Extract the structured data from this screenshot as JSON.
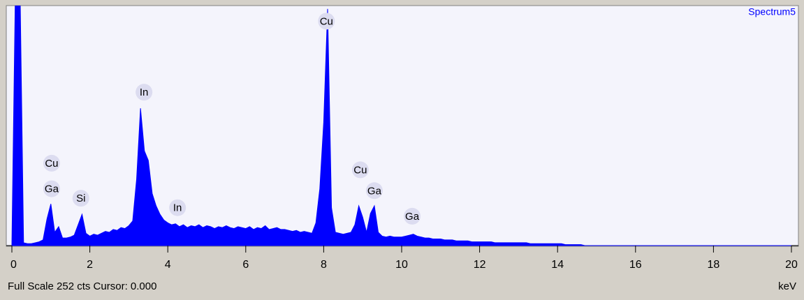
{
  "chart_data": {
    "type": "area",
    "color": "#0000ff",
    "series_name": "Spectrum5",
    "x": [
      0,
      0.1,
      0.2,
      0.3,
      0.4,
      0.5,
      0.6,
      0.7,
      0.8,
      0.9,
      1,
      1.1,
      1.2,
      1.3,
      1.4,
      1.5,
      1.6,
      1.7,
      1.8,
      1.9,
      2,
      2.1,
      2.2,
      2.3,
      2.4,
      2.5,
      2.6,
      2.7,
      2.8,
      2.9,
      3,
      3.1,
      3.2,
      3.3,
      3.4,
      3.5,
      3.6,
      3.7,
      3.8,
      3.9,
      4,
      4.1,
      4.2,
      4.3,
      4.4,
      4.5,
      4.6,
      4.7,
      4.8,
      4.9,
      5,
      5.1,
      5.2,
      5.3,
      5.4,
      5.5,
      5.6,
      5.7,
      5.8,
      5.9,
      6,
      6.1,
      6.2,
      6.3,
      6.4,
      6.5,
      6.6,
      6.7,
      6.8,
      6.9,
      7,
      7.1,
      7.2,
      7.3,
      7.4,
      7.5,
      7.6,
      7.7,
      7.8,
      7.9,
      8,
      8.1,
      8.2,
      8.3,
      8.4,
      8.5,
      8.6,
      8.7,
      8.8,
      8.9,
      9,
      9.1,
      9.2,
      9.3,
      9.4,
      9.5,
      9.6,
      9.7,
      9.8,
      9.9,
      10,
      10.1,
      10.2,
      10.3,
      10.4,
      10.5,
      10.6,
      10.7,
      10.8,
      10.9,
      11,
      11.1,
      11.2,
      11.3,
      11.4,
      11.5,
      11.6,
      11.7,
      11.8,
      11.9,
      12,
      12.1,
      12.2,
      12.3,
      12.4,
      12.5,
      12.6,
      12.7,
      12.8,
      12.9,
      13,
      13.1,
      13.2,
      13.3,
      13.4,
      13.5,
      13.6,
      13.7,
      13.8,
      13.9,
      14,
      14.1,
      14.2,
      14.3,
      14.4,
      14.5,
      14.6,
      14.7,
      14.8,
      14.9,
      15,
      20
    ],
    "values": [
      0,
      300,
      300,
      3,
      2,
      2,
      3,
      4,
      6,
      28,
      44,
      14,
      20,
      8,
      8,
      9,
      11,
      22,
      33,
      13,
      10,
      12,
      11,
      13,
      15,
      14,
      17,
      16,
      19,
      18,
      21,
      26,
      70,
      145,
      100,
      90,
      55,
      42,
      33,
      27,
      24,
      22,
      23,
      20,
      22,
      19,
      21,
      20,
      22,
      19,
      21,
      20,
      18,
      20,
      19,
      21,
      19,
      18,
      20,
      19,
      18,
      20,
      17,
      19,
      18,
      21,
      17,
      18,
      19,
      17,
      17,
      16,
      15,
      16,
      14,
      15,
      14,
      13,
      24,
      60,
      130,
      250,
      40,
      14,
      13,
      12,
      13,
      14,
      22,
      42,
      30,
      14,
      34,
      42,
      14,
      10,
      9,
      10,
      9,
      9,
      9,
      10,
      11,
      12,
      10,
      9,
      8,
      8,
      7,
      7,
      7,
      6,
      6,
      6,
      5,
      5,
      5,
      5,
      4,
      4,
      4,
      4,
      4,
      4,
      3,
      3,
      3,
      3,
      3,
      3,
      3,
      3,
      3,
      2,
      2,
      2,
      2,
      2,
      2,
      2,
      2,
      2,
      1,
      1,
      1,
      1,
      1,
      0,
      0,
      0,
      0,
      0
    ],
    "xlim": [
      0,
      20
    ],
    "ylim": [
      0,
      252
    ],
    "xticks": [
      0,
      2,
      4,
      6,
      8,
      10,
      12,
      14,
      16,
      18,
      20
    ],
    "annotations": [
      {
        "text": "Cu",
        "x": 1.02,
        "y": 87
      },
      {
        "text": "Ga",
        "x": 1.02,
        "y": 60
      },
      {
        "text": "Si",
        "x": 1.77,
        "y": 50
      },
      {
        "text": "In",
        "x": 3.39,
        "y": 162
      },
      {
        "text": "In",
        "x": 4.25,
        "y": 40
      },
      {
        "text": "Cu",
        "x": 8.07,
        "y": 237
      },
      {
        "text": "Cu",
        "x": 8.94,
        "y": 80
      },
      {
        "text": "Ga",
        "x": 9.3,
        "y": 58
      },
      {
        "text": "Ga",
        "x": 10.27,
        "y": 31
      }
    ],
    "footer": "Full Scale 252 cts Cursor: 0.000",
    "x_unit": "keV"
  }
}
